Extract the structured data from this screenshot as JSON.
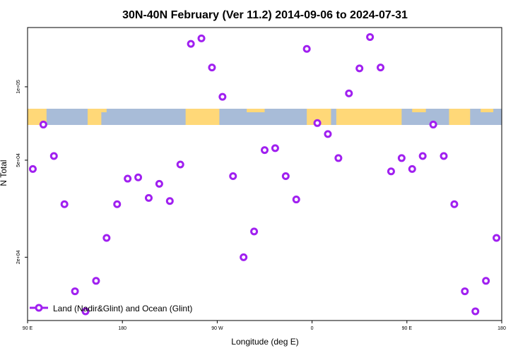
{
  "chart_data": {
    "type": "scatter",
    "title": "30N-40N February (Ver 11.2)   2014-09-06 to 2024-07-31",
    "xlabel": "Longitude (deg E)",
    "ylabel": "N Total",
    "x_scale": "linear",
    "y_scale": "log",
    "xlim": [
      90,
      540
    ],
    "ylim": [
      11000,
      175000
    ],
    "x_ticks": [
      {
        "value": 90,
        "label": "90 E"
      },
      {
        "value": 180,
        "label": "180"
      },
      {
        "value": 270,
        "label": "90 W"
      },
      {
        "value": 360,
        "label": "0"
      },
      {
        "value": 450,
        "label": "90 E"
      },
      {
        "value": 540,
        "label": "180"
      }
    ],
    "y_ticks": [
      {
        "value": 20000,
        "label": "2e+04"
      },
      {
        "value": 50000,
        "label": "5e+04"
      },
      {
        "value": 100000,
        "label": "1e+05"
      }
    ],
    "legend": {
      "position": "bottom-left",
      "label": "Land (Nadir&Glint) and Ocean (Glint)"
    },
    "series": [
      {
        "name": "Land (Nadir&Glint) and Ocean (Glint)",
        "color": "#a020f0",
        "x": [
          95,
          105,
          115,
          125,
          135,
          145,
          155,
          165,
          175,
          185,
          195,
          205,
          215,
          225,
          235,
          245,
          255,
          265,
          275,
          285,
          295,
          305,
          315,
          325,
          335,
          345,
          355,
          365,
          375,
          385,
          395,
          405,
          415,
          425,
          435,
          445,
          455,
          465,
          475,
          485,
          495,
          505,
          515,
          525,
          535
        ],
        "y": [
          46000,
          70000,
          52000,
          33000,
          14500,
          12000,
          16000,
          24000,
          33000,
          42000,
          42500,
          35000,
          40000,
          34000,
          48000,
          150000,
          158000,
          120000,
          91000,
          43000,
          20000,
          25500,
          55000,
          56000,
          43000,
          34500,
          143000,
          71000,
          64000,
          51000,
          94000,
          119000,
          160000,
          120000,
          45000,
          51000,
          46000,
          52000,
          70000,
          52000,
          33000,
          14500,
          12000,
          16000,
          24000
        ]
      }
    ],
    "map_strip": {
      "ocean_color": "#a8bcd8",
      "land_color": "#ffd878"
    }
  }
}
